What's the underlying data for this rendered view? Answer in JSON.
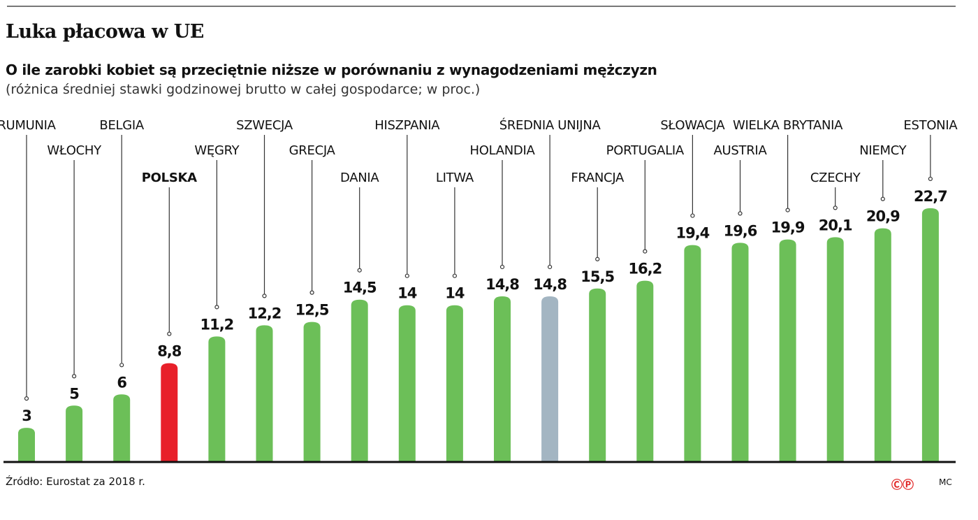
{
  "header": {
    "title": "Luka płacowa w UE",
    "subtitle": "O ile zarobki kobiet są przeciętnie niższe w porównaniu z wynagodzeniami mężczyzn",
    "note": "(różnica średniej stawki godzinowej brutto w całej gospodarce; w proc.)"
  },
  "footer": {
    "source": "Źródło: Eurostat za 2018 r.",
    "logo": "ⒸⓅ",
    "author": "MC"
  },
  "chart_data": {
    "type": "bar",
    "categories": [
      "RUMUNIA",
      "WŁOCHY",
      "BELGIA",
      "POLSKA",
      "WĘGRY",
      "SZWECJA",
      "GRECJA",
      "DANIA",
      "HISZPANIA",
      "LITWA",
      "HOLANDIA",
      "ŚREDNIA UNIJNA",
      "FRANCJA",
      "PORTUGALIA",
      "SŁOWACJA",
      "AUSTRIA",
      "WIELKA BRYTANIA",
      "CZECHY",
      "NIEMCY",
      "ESTONIA"
    ],
    "values": [
      3,
      5,
      6,
      8.8,
      11.2,
      12.2,
      12.5,
      14.5,
      14,
      14,
      14.8,
      14.8,
      15.5,
      16.2,
      19.4,
      19.6,
      19.9,
      20.1,
      20.9,
      22.7
    ],
    "value_labels": [
      "3",
      "5",
      "6",
      "8,8",
      "11,2",
      "12,2",
      "12,5",
      "14,5",
      "14",
      "14",
      "14,8",
      "14,8",
      "15,5",
      "16,2",
      "19,4",
      "19,6",
      "19,9",
      "20,1",
      "20,9",
      "22,7"
    ],
    "highlight": {
      "POLSKA": "#e8202a",
      "ŚREDNIA UNIJNA": "#a3b5c2"
    },
    "bar_color": "#6cbf58",
    "ylim": [
      0,
      23
    ],
    "title": "Luka płacowa w UE"
  }
}
